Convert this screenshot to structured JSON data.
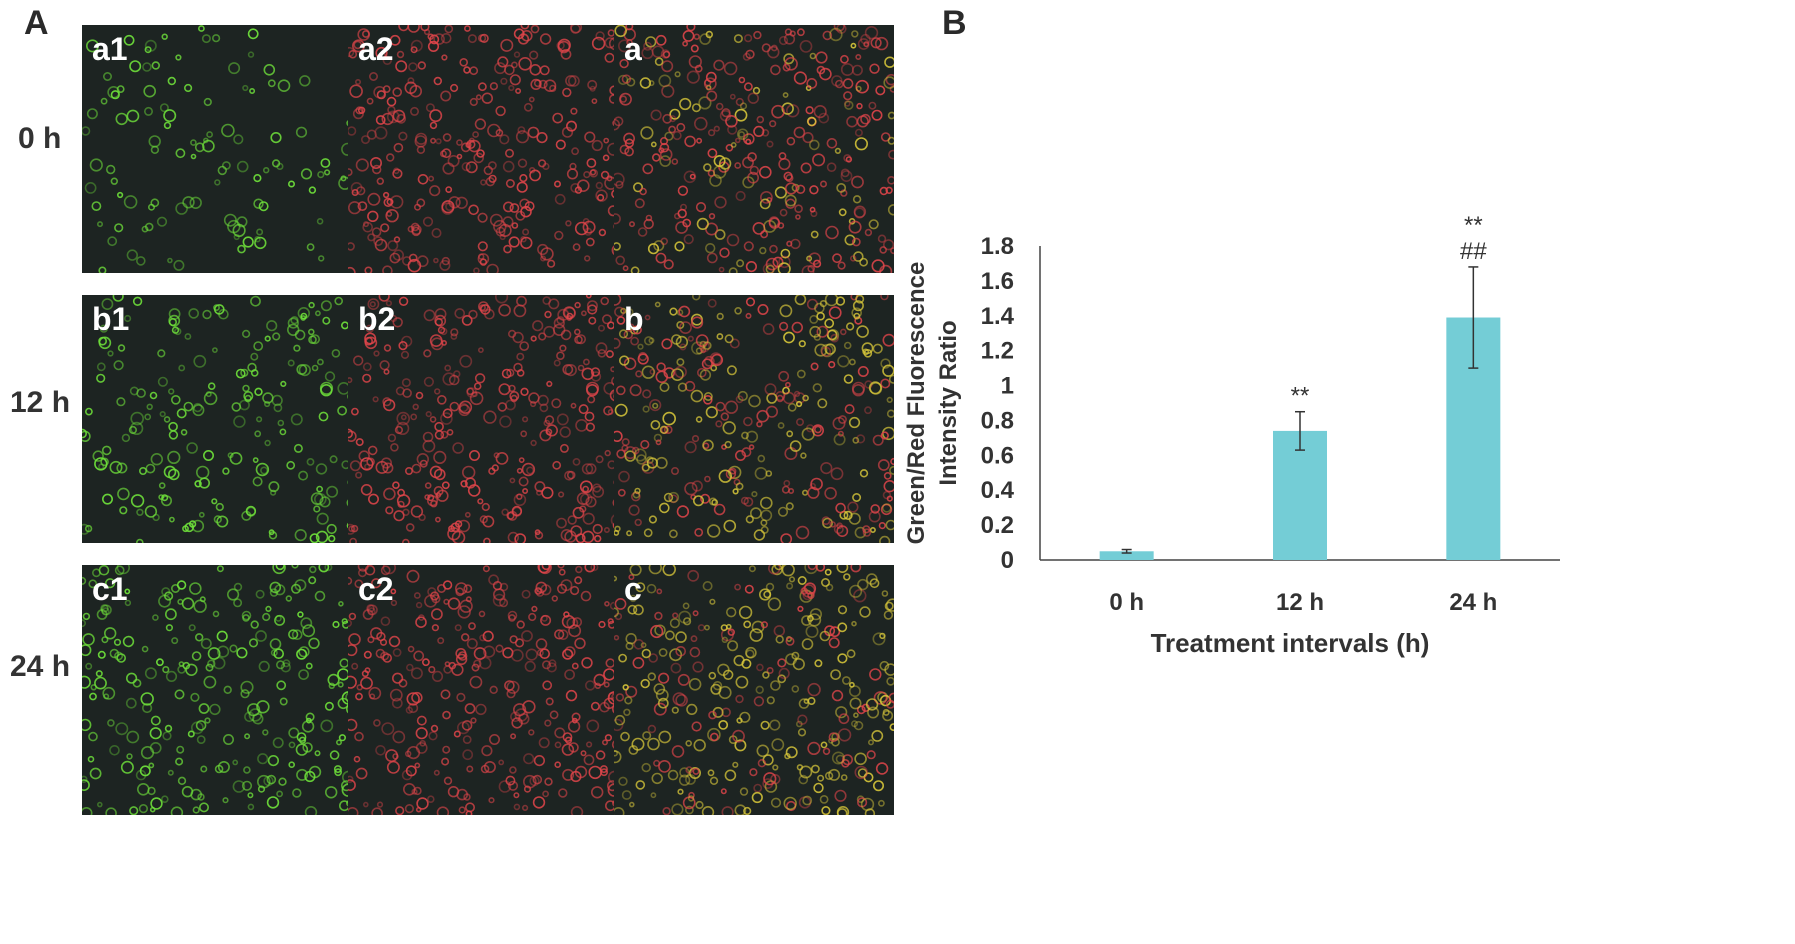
{
  "panels": {
    "a": "A",
    "b": "B"
  },
  "rows": [
    {
      "label": "0 h",
      "tiles": [
        {
          "label": "a1",
          "channel": "green"
        },
        {
          "label": "a2",
          "channel": "red"
        },
        {
          "label": "a",
          "channel": "merge"
        }
      ],
      "density": 0.35
    },
    {
      "label": "12 h",
      "tiles": [
        {
          "label": "b1",
          "channel": "green"
        },
        {
          "label": "b2",
          "channel": "red"
        },
        {
          "label": "b",
          "channel": "merge"
        }
      ],
      "density": 0.75
    },
    {
      "label": "24 h",
      "tiles": [
        {
          "label": "c1",
          "channel": "green"
        },
        {
          "label": "c2",
          "channel": "red"
        },
        {
          "label": "c",
          "channel": "merge"
        }
      ],
      "density": 1.0
    }
  ],
  "colors": {
    "green": "#6ee03a",
    "red": "#e0454a",
    "merge": "#d9c83a",
    "bar": "#74cdd6",
    "tile_bg": "#1d2422"
  },
  "chart_data": {
    "type": "bar",
    "categories": [
      "0 h",
      "12 h",
      "24 h"
    ],
    "values": [
      0.05,
      0.74,
      1.39
    ],
    "errors": [
      0.01,
      0.11,
      0.29
    ],
    "annotations": [
      {
        "category": "12 h",
        "lines": [
          "**"
        ]
      },
      {
        "category": "24 h",
        "lines": [
          "**",
          "##"
        ]
      }
    ],
    "xlabel": "Treatment intervals (h)",
    "ylabel_lines": [
      "Green/Red  Fluorescence",
      "Intensity Ratio"
    ],
    "ylim": [
      0,
      1.8
    ],
    "yticks": [
      "0",
      "0.2",
      "0.4",
      "0.6",
      "0.8",
      "1",
      "1.2",
      "1.4",
      "1.6",
      "1.8"
    ],
    "grid": false,
    "legend": "none"
  }
}
